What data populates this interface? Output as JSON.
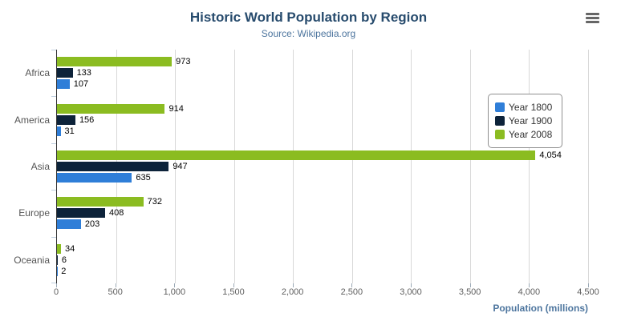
{
  "header": {
    "title": "Historic World Population by Region",
    "subtitle": "Source: Wikipedia.org"
  },
  "menu": {
    "icon": "hamburger-menu-icon"
  },
  "chart_data": {
    "type": "bar",
    "orientation": "horizontal",
    "title": "Historic World Population by Region",
    "subtitle": "Source: Wikipedia.org",
    "categories": [
      "Africa",
      "America",
      "Asia",
      "Europe",
      "Oceania"
    ],
    "series": [
      {
        "name": "Year 1800",
        "color": "#2f7ed8",
        "values": [
          107,
          31,
          635,
          203,
          2
        ]
      },
      {
        "name": "Year 1900",
        "color": "#0d233a",
        "values": [
          133,
          156,
          947,
          408,
          6
        ]
      },
      {
        "name": "Year 2008",
        "color": "#8bbc21",
        "values": [
          973,
          914,
          4054,
          732,
          34
        ]
      }
    ],
    "bar_order_top_to_bottom": [
      "Year 2008",
      "Year 1900",
      "Year 1800"
    ],
    "xlabel": "Population (millions)",
    "ylabel": "",
    "xlim": [
      0,
      4500
    ],
    "x_ticks": [
      0,
      500,
      1000,
      1500,
      2000,
      2500,
      3000,
      3500,
      4000,
      4500
    ],
    "grid": true,
    "legend_position": "right",
    "data_labels": true
  },
  "colors": {
    "title": "#274b6d",
    "subtitle": "#4d759e",
    "axis_title": "#4d759e",
    "axis_label": "#606060",
    "grid": "#d8d8d8",
    "legend_border": "#909090"
  }
}
